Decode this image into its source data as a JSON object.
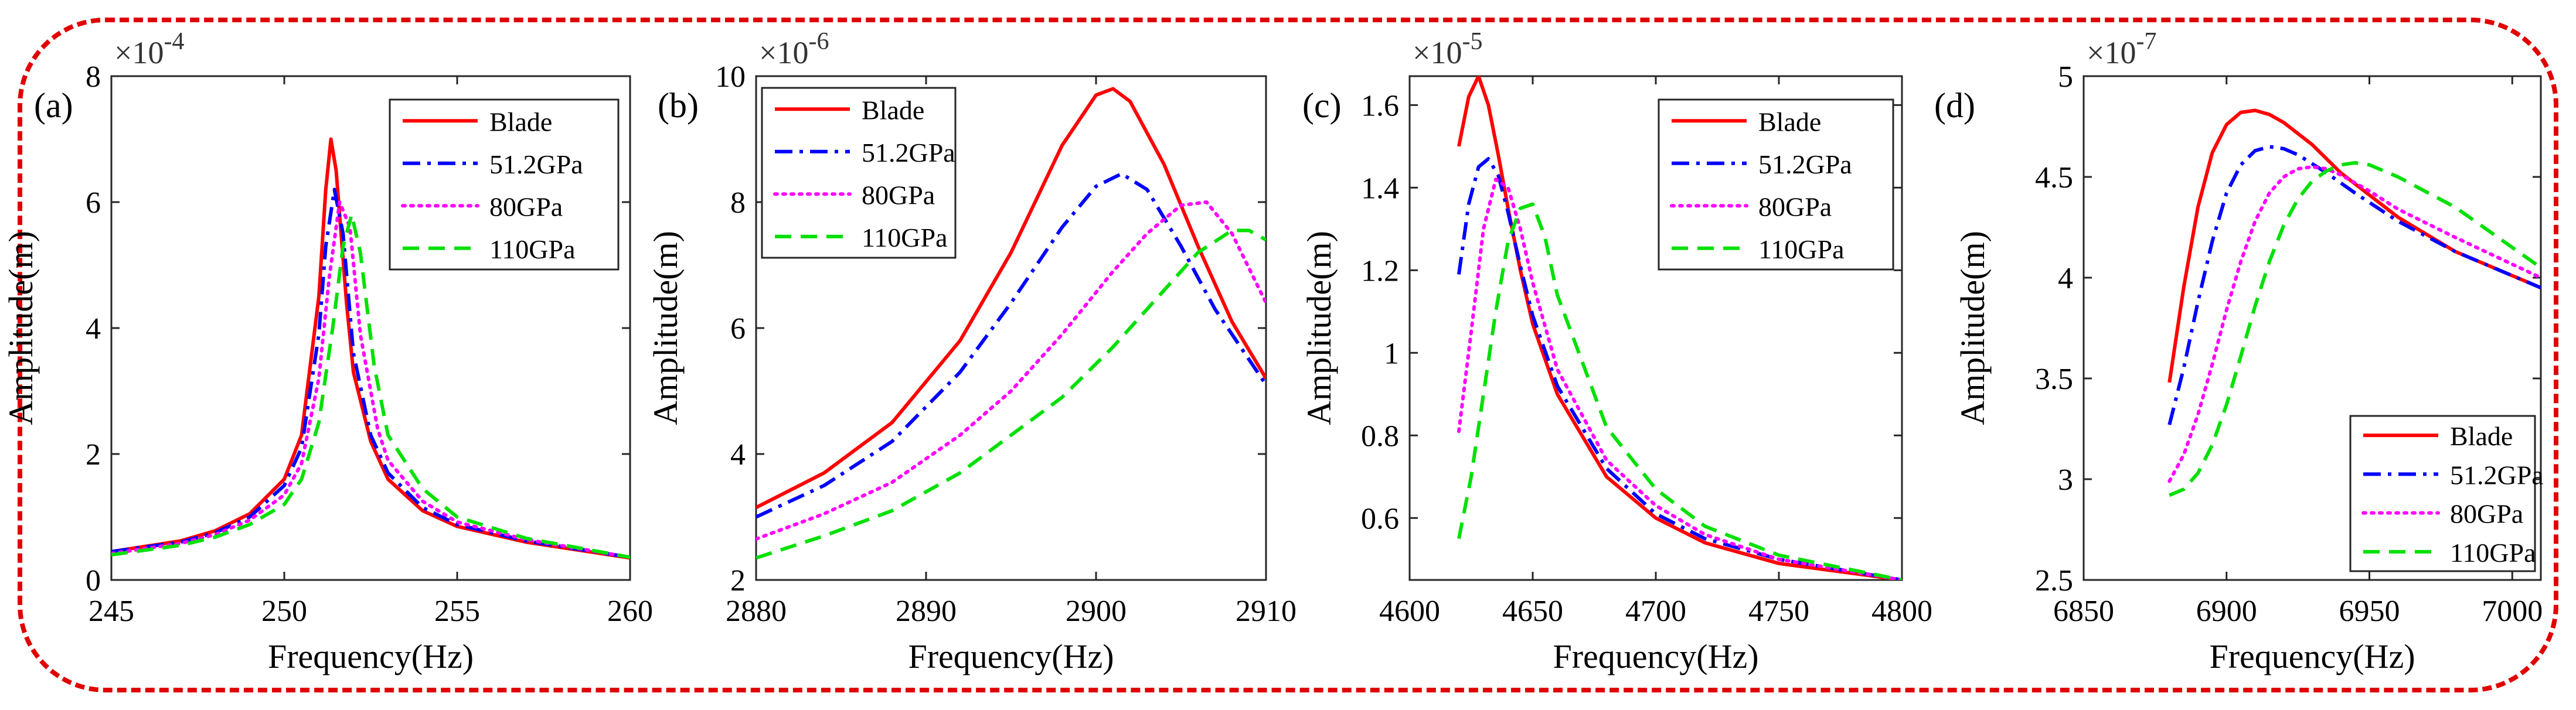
{
  "panels": [
    {
      "label": "(a)",
      "xlabel": "Frequency(Hz)",
      "ylabel": "Amplitude(m)",
      "exponent_base": "×10",
      "exponent_power": "-4",
      "legend_position": "top-right",
      "chart_data": {
        "type": "line",
        "xlim": [
          245,
          260
        ],
        "ylim": [
          0,
          8
        ],
        "xticks": [
          245,
          250,
          255,
          260
        ],
        "yticks": [
          0,
          2,
          4,
          6,
          8
        ],
        "series": [
          {
            "name": "Blade",
            "color": "#ff0000",
            "style": "solid",
            "x": [
              245,
              247,
              248,
              249,
              250,
              250.5,
              251,
              251.2,
              251.35,
              251.5,
              251.8,
              252,
              252.5,
              253,
              254,
              255,
              257,
              260
            ],
            "y": [
              0.45,
              0.62,
              0.78,
              1.05,
              1.6,
              2.3,
              4.5,
              6.2,
              7.0,
              6.5,
              4.4,
              3.3,
              2.2,
              1.6,
              1.1,
              0.85,
              0.6,
              0.35
            ]
          },
          {
            "name": "51.2GPa",
            "color": "#0000ff",
            "style": "dashdot",
            "x": [
              245,
              247,
              248,
              249,
              250,
              250.5,
              251,
              251.2,
              251.45,
              251.7,
              252,
              252.5,
              253,
              254,
              255,
              257,
              260
            ],
            "y": [
              0.45,
              0.6,
              0.75,
              1.0,
              1.5,
              2.1,
              3.9,
              5.3,
              6.2,
              5.5,
              3.6,
              2.3,
              1.7,
              1.15,
              0.88,
              0.62,
              0.36
            ]
          },
          {
            "name": "80GPa",
            "color": "#ff00ff",
            "style": "dotted",
            "x": [
              245,
              247,
              248,
              249,
              250,
              250.5,
              251,
              251.3,
              251.6,
              251.9,
              252.2,
              252.7,
              253,
              254,
              255,
              257,
              260
            ],
            "y": [
              0.42,
              0.58,
              0.72,
              0.95,
              1.35,
              1.85,
              3.2,
              4.8,
              6.0,
              5.6,
              3.9,
              2.4,
              1.9,
              1.25,
              0.92,
              0.64,
              0.36
            ]
          },
          {
            "name": "110GPa",
            "color": "#00e000",
            "style": "dashed",
            "x": [
              245,
              247,
              248,
              249,
              250,
              250.5,
              251,
              251.4,
              251.7,
              251.95,
              252.2,
              252.6,
              253,
              254,
              255,
              257,
              260
            ],
            "y": [
              0.4,
              0.55,
              0.68,
              0.88,
              1.2,
              1.6,
              2.5,
              4.0,
              5.3,
              5.8,
              5.2,
              3.4,
              2.3,
              1.45,
              1.0,
              0.66,
              0.36
            ]
          }
        ]
      }
    },
    {
      "label": "(b)",
      "xlabel": "Frequency(Hz)",
      "ylabel": "Amplitude(m)",
      "exponent_base": "×10",
      "exponent_power": "-6",
      "legend_position": "top-left",
      "chart_data": {
        "type": "line",
        "xlim": [
          2880,
          2910
        ],
        "ylim": [
          2,
          10
        ],
        "xticks": [
          2880,
          2890,
          2900,
          2910
        ],
        "yticks": [
          2,
          4,
          6,
          8,
          10
        ],
        "series": [
          {
            "name": "Blade",
            "color": "#ff0000",
            "style": "solid",
            "x": [
              2880,
              2884,
              2888,
              2892,
              2895,
              2898,
              2900,
              2901,
              2902,
              2904,
              2906,
              2908,
              2910
            ],
            "y": [
              3.15,
              3.7,
              4.5,
              5.8,
              7.2,
              8.9,
              9.7,
              9.8,
              9.6,
              8.6,
              7.3,
              6.1,
              5.2
            ]
          },
          {
            "name": "51.2GPa",
            "color": "#0000ff",
            "style": "dashdot",
            "x": [
              2880,
              2884,
              2888,
              2892,
              2895,
              2898,
              2900,
              2901.5,
              2903,
              2905,
              2907,
              2910
            ],
            "y": [
              3.0,
              3.5,
              4.2,
              5.3,
              6.4,
              7.6,
              8.25,
              8.45,
              8.2,
              7.3,
              6.3,
              5.1
            ]
          },
          {
            "name": "80GPa",
            "color": "#ff00ff",
            "style": "dotted",
            "x": [
              2880,
              2884,
              2888,
              2892,
              2895,
              2898,
              2901,
              2903,
              2905,
              2906.5,
              2908,
              2910
            ],
            "y": [
              2.65,
              3.05,
              3.55,
              4.3,
              5.0,
              5.9,
              6.9,
              7.5,
              7.95,
              8.0,
              7.5,
              6.4
            ]
          },
          {
            "name": "110GPa",
            "color": "#00e000",
            "style": "dashed",
            "x": [
              2880,
              2884,
              2888,
              2892,
              2895,
              2898,
              2901,
              2904,
              2906,
              2908,
              2909,
              2910
            ],
            "y": [
              2.35,
              2.7,
              3.1,
              3.7,
              4.3,
              4.9,
              5.7,
              6.6,
              7.2,
              7.55,
              7.55,
              7.4
            ]
          }
        ]
      }
    },
    {
      "label": "(c)",
      "xlabel": "Frequency(Hz)",
      "ylabel": "Amplitude(m)",
      "exponent_base": "×10",
      "exponent_power": "-5",
      "legend_position": "top-right",
      "chart_data": {
        "type": "line",
        "xlim": [
          4600,
          4800
        ],
        "ylim": [
          0.45,
          1.67
        ],
        "xticks": [
          4600,
          4650,
          4700,
          4750,
          4800
        ],
        "yticks": [
          0.6,
          0.8,
          1.0,
          1.2,
          1.4,
          1.6
        ],
        "ytick_labels": [
          "0.6",
          "0.8",
          "1",
          "1.2",
          "1.4",
          "1.6"
        ],
        "series": [
          {
            "name": "Blade",
            "color": "#ff0000",
            "style": "solid",
            "x": [
              4620,
              4624,
              4628,
              4632,
              4636,
              4640,
              4645,
              4650,
              4660,
              4680,
              4700,
              4720,
              4750,
              4800
            ],
            "y": [
              1.5,
              1.62,
              1.67,
              1.6,
              1.48,
              1.35,
              1.2,
              1.07,
              0.9,
              0.7,
              0.6,
              0.54,
              0.49,
              0.45
            ]
          },
          {
            "name": "51.2GPa",
            "color": "#0000ff",
            "style": "dashdot",
            "x": [
              4620,
              4624,
              4628,
              4632,
              4636,
              4640,
              4645,
              4650,
              4660,
              4680,
              4700,
              4720,
              4750,
              4800
            ],
            "y": [
              1.19,
              1.36,
              1.45,
              1.47,
              1.43,
              1.34,
              1.21,
              1.09,
              0.92,
              0.72,
              0.61,
              0.55,
              0.5,
              0.45
            ]
          },
          {
            "name": "80GPa",
            "color": "#ff00ff",
            "style": "dotted",
            "x": [
              4620,
              4625,
              4630,
              4635,
              4640,
              4645,
              4650,
              4660,
              4680,
              4700,
              4720,
              4750,
              4800
            ],
            "y": [
              0.81,
              1.05,
              1.3,
              1.42,
              1.4,
              1.3,
              1.17,
              0.96,
              0.74,
              0.63,
              0.56,
              0.5,
              0.45
            ]
          },
          {
            "name": "110GPa",
            "color": "#00e000",
            "style": "dashed",
            "x": [
              4620,
              4625,
              4630,
              4635,
              4640,
              4645,
              4650,
              4655,
              4660,
              4680,
              4700,
              4720,
              4750,
              4800
            ],
            "y": [
              0.55,
              0.7,
              0.9,
              1.1,
              1.27,
              1.35,
              1.36,
              1.28,
              1.14,
              0.82,
              0.67,
              0.58,
              0.51,
              0.45
            ]
          }
        ]
      }
    },
    {
      "label": "(d)",
      "xlabel": "Frequency(Hz)",
      "ylabel": "Amplitude(m)",
      "exponent_base": "×10",
      "exponent_power": "-7",
      "legend_position": "bottom-right",
      "chart_data": {
        "type": "line",
        "xlim": [
          6850,
          7010
        ],
        "ylim": [
          2.5,
          5
        ],
        "xticks": [
          6850,
          6900,
          6950,
          7000
        ],
        "yticks": [
          2.5,
          3,
          3.5,
          4,
          4.5,
          5
        ],
        "ytick_labels": [
          "2.5",
          "3",
          "3.5",
          "4",
          "4.5",
          "5"
        ],
        "series": [
          {
            "name": "Blade",
            "color": "#ff0000",
            "style": "solid",
            "x": [
              6880,
              6885,
              6890,
              6895,
              6900,
              6905,
              6910,
              6915,
              6920,
              6930,
              6940,
              6960,
              6980,
              7010
            ],
            "y": [
              3.48,
              3.95,
              4.35,
              4.62,
              4.76,
              4.82,
              4.83,
              4.81,
              4.77,
              4.66,
              4.52,
              4.3,
              4.13,
              3.95
            ]
          },
          {
            "name": "51.2GPa",
            "color": "#0000ff",
            "style": "dashdot",
            "x": [
              6880,
              6885,
              6890,
              6895,
              6900,
              6905,
              6910,
              6915,
              6920,
              6925,
              6935,
              6945,
              6960,
              6980,
              7010
            ],
            "y": [
              3.27,
              3.55,
              3.88,
              4.18,
              4.42,
              4.56,
              4.63,
              4.65,
              4.64,
              4.61,
              4.52,
              4.42,
              4.28,
              4.13,
              3.95
            ]
          },
          {
            "name": "80GPa",
            "color": "#ff00ff",
            "style": "dotted",
            "x": [
              6880,
              6885,
              6890,
              6895,
              6900,
              6905,
              6910,
              6915,
              6920,
              6925,
              6930,
              6935,
              6940,
              6950,
              6960,
              6980,
              7010
            ],
            "y": [
              2.99,
              3.12,
              3.32,
              3.57,
              3.84,
              4.08,
              4.28,
              4.42,
              4.5,
              4.54,
              4.55,
              4.54,
              4.51,
              4.43,
              4.34,
              4.2,
              4.0
            ]
          },
          {
            "name": "110GPa",
            "color": "#00e000",
            "style": "dashed",
            "x": [
              6880,
              6885,
              6890,
              6895,
              6900,
              6905,
              6910,
              6915,
              6920,
              6925,
              6930,
              6935,
              6940,
              6945,
              6950,
              6960,
              6980,
              7010
            ],
            "y": [
              2.92,
              2.95,
              3.03,
              3.17,
              3.37,
              3.61,
              3.86,
              4.08,
              4.26,
              4.39,
              4.48,
              4.53,
              4.56,
              4.57,
              4.56,
              4.5,
              4.35,
              4.05
            ]
          }
        ]
      }
    }
  ]
}
